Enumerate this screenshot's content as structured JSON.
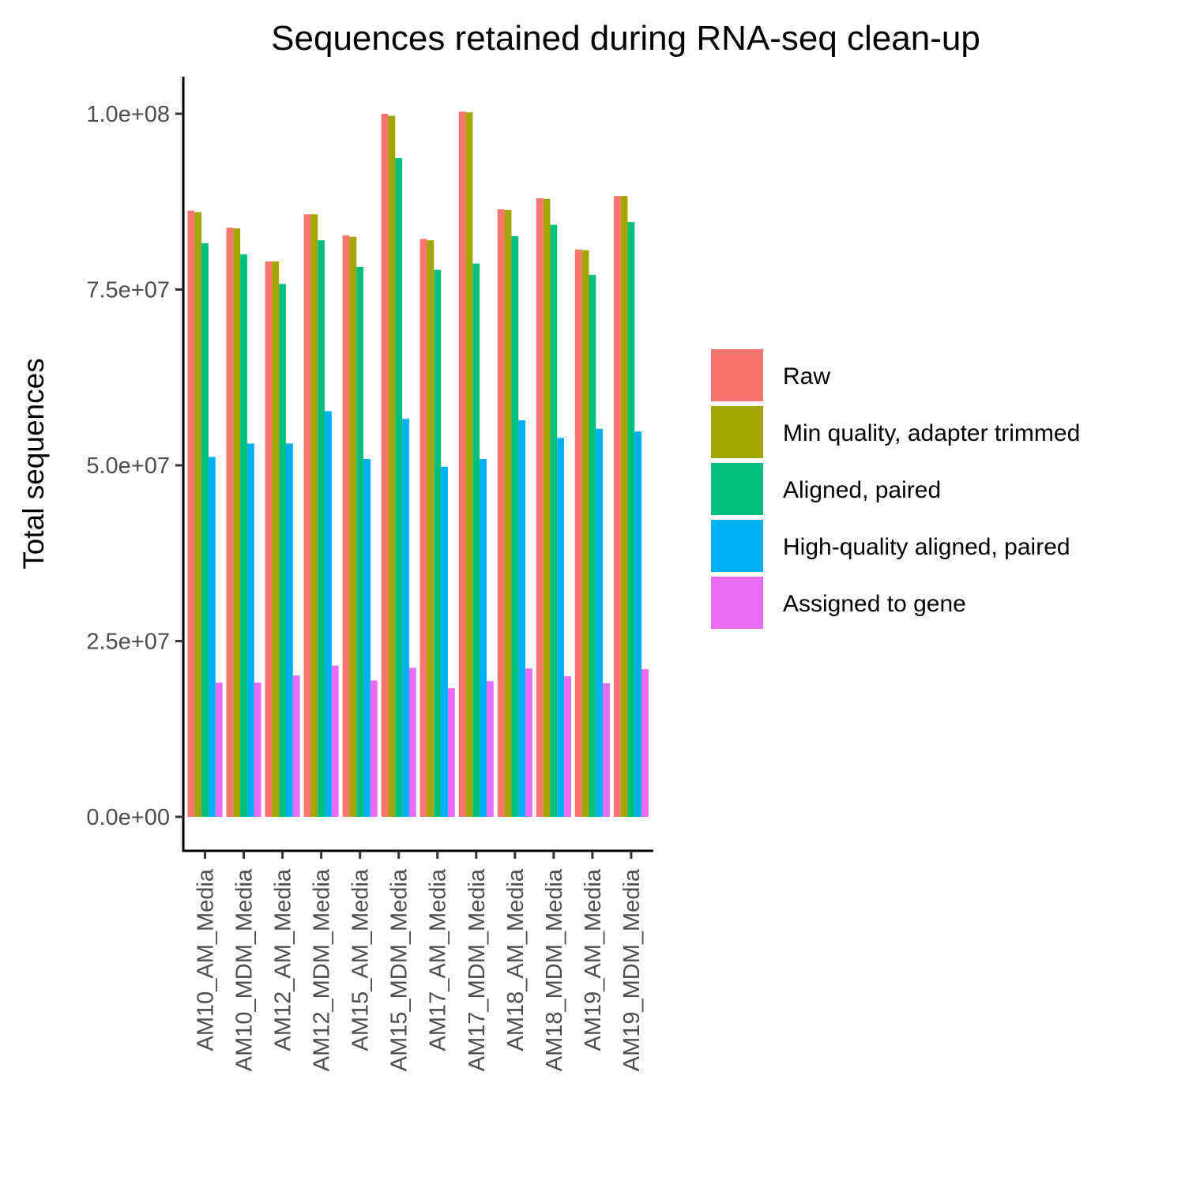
{
  "chart_data": {
    "type": "bar",
    "title": "Sequences retained during RNA-seq clean-up",
    "xlabel": "",
    "ylabel": "Total sequences",
    "ylim": [
      -4500000,
      105500000
    ],
    "yticks": [
      {
        "value": 0,
        "label": "0.0e+00"
      },
      {
        "value": 25000000,
        "label": "2.5e+07"
      },
      {
        "value": 50000000,
        "label": "5.0e+07"
      },
      {
        "value": 75000000,
        "label": "7.5e+07"
      },
      {
        "value": 100000000,
        "label": "1.0e+08"
      }
    ],
    "categories": [
      "AM10_AM_Media",
      "AM10_MDM_Media",
      "AM12_AM_Media",
      "AM12_MDM_Media",
      "AM15_AM_Media",
      "AM15_MDM_Media",
      "AM17_AM_Media",
      "AM17_MDM_Media",
      "AM18_AM_Media",
      "AM18_MDM_Media",
      "AM19_AM_Media",
      "AM19_MDM_Media"
    ],
    "series": [
      {
        "name": "Raw",
        "color": "#F8766D",
        "values": [
          86200000,
          83800000,
          79000000,
          85700000,
          82700000,
          100000000,
          82200000,
          100300000,
          86400000,
          88000000,
          80700000,
          88300000
        ]
      },
      {
        "name": "Min quality, adapter trimmed",
        "color": "#A3A500",
        "values": [
          86000000,
          83700000,
          79000000,
          85700000,
          82500000,
          99700000,
          82000000,
          100200000,
          86300000,
          87900000,
          80600000,
          88300000
        ]
      },
      {
        "name": "Aligned, paired",
        "color": "#00BF7D",
        "values": [
          81600000,
          80000000,
          75800000,
          82000000,
          78200000,
          93700000,
          77800000,
          78700000,
          82600000,
          84200000,
          77100000,
          84600000
        ]
      },
      {
        "name": "High-quality aligned, paired",
        "color": "#00B0F6",
        "values": [
          51200000,
          53100000,
          53100000,
          57700000,
          50900000,
          56600000,
          49800000,
          50900000,
          56400000,
          53900000,
          55200000,
          54800000
        ]
      },
      {
        "name": "Assigned to gene",
        "color": "#E76BF3",
        "values": [
          19100000,
          19100000,
          20100000,
          21500000,
          19400000,
          21200000,
          18300000,
          19300000,
          21100000,
          20000000,
          19000000,
          21000000
        ]
      }
    ],
    "legend_position": "right",
    "grid": false
  }
}
